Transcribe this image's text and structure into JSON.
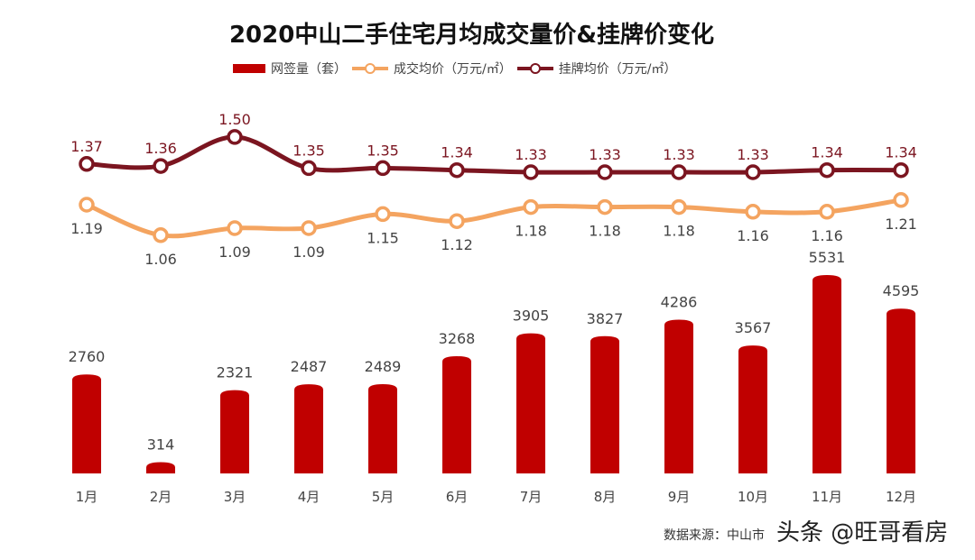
{
  "chart_data": {
    "type": "bar+line",
    "title": "2020中山二手住宅月均成交量价&挂牌价变化",
    "categories": [
      "1月",
      "2月",
      "3月",
      "4月",
      "5月",
      "6月",
      "7月",
      "8月",
      "9月",
      "10月",
      "11月",
      "12月"
    ],
    "series": [
      {
        "name": "网签量（套）",
        "type": "bar",
        "color": "#c00000",
        "values": [
          2760,
          314,
          2321,
          2487,
          2489,
          3268,
          3905,
          3827,
          4286,
          3567,
          5531,
          4595
        ]
      },
      {
        "name": "成交均价（万元/㎡）",
        "type": "line",
        "color": "#f4a460",
        "values": [
          1.19,
          1.06,
          1.09,
          1.09,
          1.15,
          1.12,
          1.18,
          1.18,
          1.18,
          1.16,
          1.16,
          1.21
        ]
      },
      {
        "name": "挂牌均价（万元/㎡）",
        "type": "line",
        "color": "#7b1520",
        "values": [
          1.37,
          1.36,
          1.5,
          1.35,
          1.35,
          1.34,
          1.33,
          1.33,
          1.33,
          1.33,
          1.34,
          1.34
        ]
      }
    ],
    "legend": "top"
  },
  "source": "数据来源：中山市",
  "watermark": "头条 @旺哥看房"
}
